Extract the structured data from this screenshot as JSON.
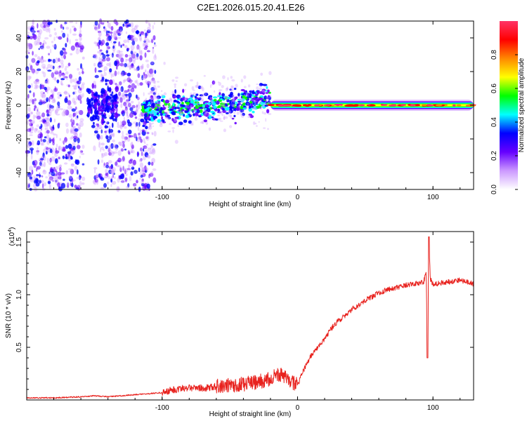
{
  "chart_data": {
    "title": "C2E1.2026.015.20.41.E26",
    "panels": [
      {
        "type": "heatmap",
        "name": "spectrogram",
        "xlabel": "Height of straight line (km)",
        "ylabel": "Frequency (Hz)",
        "xlim": [
          -200,
          130
        ],
        "ylim": [
          -50,
          50
        ],
        "xticks": [
          -100,
          0,
          100
        ],
        "yticks": [
          -40,
          -20,
          0,
          20,
          40
        ],
        "xtick_labels": [
          "-100",
          "0",
          "100"
        ],
        "ytick_labels": [
          "-40",
          "-20",
          "0",
          "20",
          "40"
        ],
        "colorbar": {
          "label": "Normalized spectral amplitude",
          "range": [
            0,
            1
          ],
          "ticks": [
            "0.0",
            "0.2",
            "0.4",
            "0.6",
            "0.8"
          ],
          "colors": [
            "#ffffff",
            "#cc99ff",
            "#6600ff",
            "#0000ff",
            "#00ffff",
            "#00ff00",
            "#ffff00",
            "#ff8800",
            "#ff0000",
            "#ff3366"
          ]
        },
        "regions": [
          {
            "name": "noise",
            "x_range": [
              -200,
              -105
            ],
            "freq_spread": 50
          },
          {
            "name": "turbulent",
            "x_range": [
              -115,
              -20
            ],
            "center_start": -3,
            "center_end": 3
          },
          {
            "name": "narrow-band",
            "x_range": [
              -20,
              130
            ],
            "center": 0
          }
        ]
      },
      {
        "type": "line",
        "name": "snr",
        "xlabel": "Height of straight line (km)",
        "ylabel": "SNR (10 * v/v)",
        "exponent_label": "(x10",
        "exponent_power": "4",
        "exponent_close": ")",
        "xlim": [
          -200,
          130
        ],
        "ylim": [
          0,
          1.6
        ],
        "xticks": [
          -100,
          0,
          100
        ],
        "yticks": [
          0.5,
          1.0,
          1.5
        ],
        "xtick_labels": [
          "-100",
          "0",
          "100"
        ],
        "ytick_labels": [
          "0.5",
          "1.0",
          "1.5"
        ],
        "color": "#e8221e",
        "series": [
          {
            "name": "SNR",
            "x": [
              -200,
              -180,
              -160,
              -150,
              -140,
              -120,
              -100,
              -90,
              -80,
              -70,
              -60,
              -50,
              -40,
              -30,
              -20,
              -15,
              -10,
              -5,
              0,
              5,
              10,
              15,
              20,
              25,
              30,
              35,
              40,
              45,
              50,
              55,
              60,
              65,
              70,
              75,
              80,
              85,
              90,
              93,
              95,
              96,
              97,
              98,
              100,
              105,
              110,
              115,
              120,
              125,
              130
            ],
            "y": [
              0.02,
              0.02,
              0.03,
              0.04,
              0.03,
              0.05,
              0.07,
              0.1,
              0.12,
              0.11,
              0.13,
              0.14,
              0.15,
              0.17,
              0.2,
              0.25,
              0.22,
              0.18,
              0.14,
              0.3,
              0.42,
              0.5,
              0.58,
              0.68,
              0.75,
              0.8,
              0.86,
              0.9,
              0.95,
              0.98,
              1.02,
              1.04,
              1.06,
              1.07,
              1.09,
              1.1,
              1.11,
              1.12,
              1.2,
              0.45,
              1.5,
              1.15,
              1.1,
              1.11,
              1.12,
              1.13,
              1.14,
              1.12,
              1.1
            ]
          }
        ]
      }
    ]
  }
}
